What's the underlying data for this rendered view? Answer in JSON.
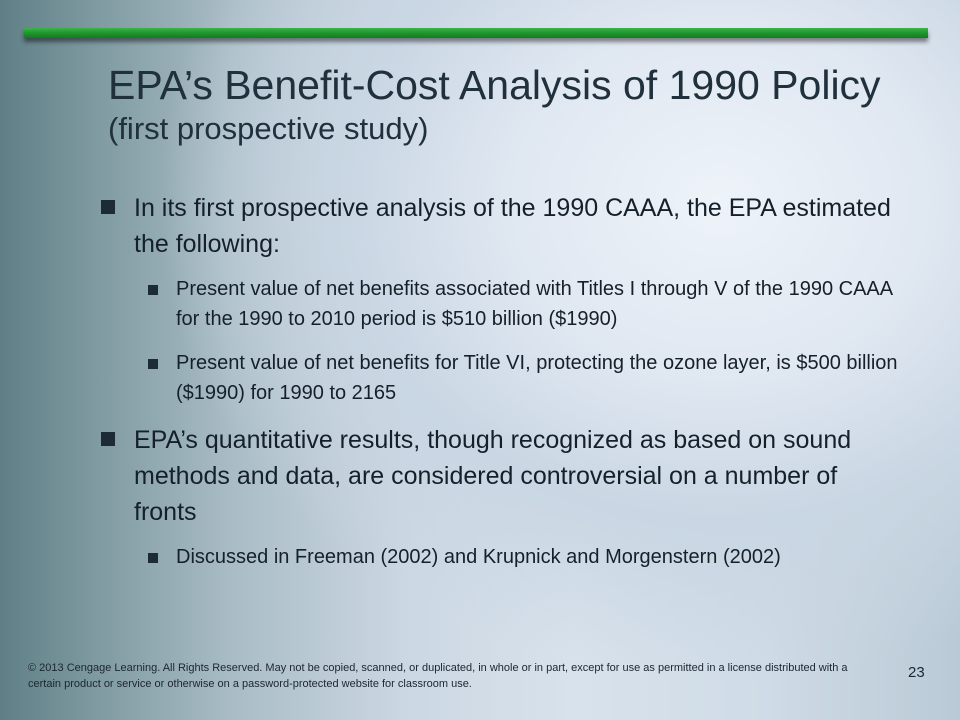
{
  "slide": {
    "title_main": "EPA’s Benefit-Cost Analysis of 1990 Policy",
    "title_sub": "(first prospective study)",
    "bullets": [
      {
        "text": "In its first prospective analysis of the 1990 CAAA, the EPA estimated the following:",
        "sub": [
          "Present value of net benefits associated with Titles I through V of the 1990 CAAA for the 1990 to 2010 period is $510 billion ($1990)",
          "Present value of net benefits for Title VI, protecting the ozone layer, is $500 billion ($1990) for 1990 to 2165"
        ]
      },
      {
        "text": "EPA’s quantitative results, though recognized as based on sound methods and data, are considered controversial on a number of fronts",
        "sub": [
          "Discussed in Freeman (2002) and Krupnick and Morgenstern (2002)"
        ]
      }
    ],
    "footer": "© 2013 Cengage Learning. All Rights Reserved. May not be copied, scanned, or duplicated, in whole or in part, except for use as permitted in a license distributed with a certain product or service or otherwise on a password-protected website for classroom use.",
    "page_number": "23"
  },
  "colors": {
    "accent_bar": "#1f9a2f",
    "text": "#15202a"
  }
}
